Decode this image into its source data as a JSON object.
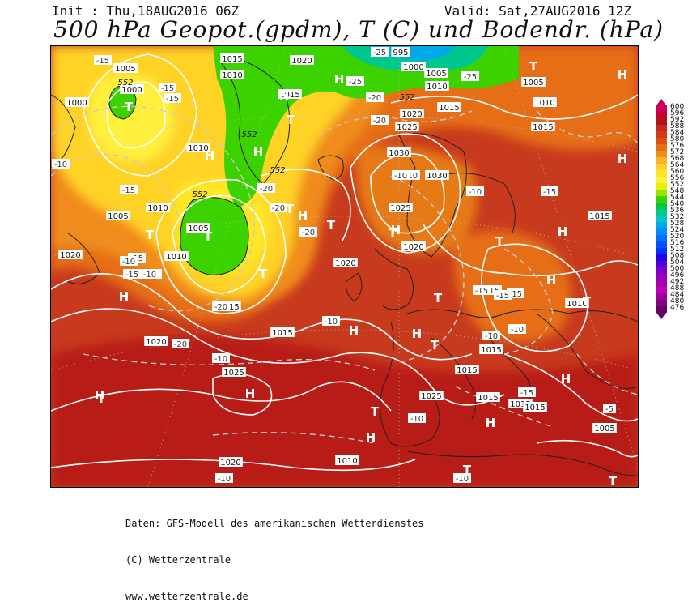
{
  "header": {
    "init": "Init : Thu,18AUG2016 06Z",
    "valid": "Valid: Sat,27AUG2016 12Z",
    "title": "500 hPa Geopot.(gpdm), T (C) und Bodendr. (hPa)"
  },
  "legend": {
    "labels": [
      "600",
      "596",
      "592",
      "588",
      "584",
      "580",
      "576",
      "572",
      "568",
      "564",
      "560",
      "556",
      "552",
      "548",
      "544",
      "540",
      "536",
      "532",
      "528",
      "524",
      "520",
      "516",
      "512",
      "508",
      "504",
      "500",
      "496",
      "492",
      "488",
      "484",
      "480",
      "476"
    ],
    "colors": [
      "#c8005a",
      "#c80032",
      "#b41414",
      "#c82828",
      "#d23c14",
      "#dc5014",
      "#e66e14",
      "#f08c1e",
      "#fab428",
      "#ffd228",
      "#ffe628",
      "#fff03c",
      "#e6f000",
      "#96e600",
      "#3cd200",
      "#00c83c",
      "#00c88c",
      "#00c8c8",
      "#00aae6",
      "#008cff",
      "#006eff",
      "#0050ff",
      "#0032ff",
      "#2800e6",
      "#5000d2",
      "#7800c8",
      "#9600be",
      "#aa00aa",
      "#be00be",
      "#a0009a",
      "#820082",
      "#640064"
    ]
  },
  "map": {
    "pressure_labels": [
      "1015",
      "1005",
      "1000",
      "1010",
      "1000",
      "1020",
      "1015",
      "1005",
      "995",
      "1000",
      "1005",
      "1010",
      "1015",
      "1010",
      "1025",
      "1020",
      "1015",
      "1030",
      "1030",
      "1010",
      "1005",
      "1010",
      "1005",
      "1015",
      "1020",
      "1025",
      "1025",
      "1020",
      "1020",
      "1010",
      "1015",
      "1020",
      "1015",
      "1025",
      "1015",
      "1015",
      "1010",
      "1015",
      "1020",
      "1015",
      "1010",
      "1015",
      "1005"
    ],
    "temp_labels": [
      "-15",
      "-15",
      "-15",
      "-10",
      "-15",
      "-15",
      "-10",
      "-10",
      "-20",
      "-20",
      "-25",
      "-25",
      "-25",
      "-20",
      "-20",
      "-20",
      "-15",
      "-10",
      "-10",
      "-10",
      "-10",
      "-15",
      "-20",
      "-15",
      "-10",
      "-10",
      "-10",
      "-15",
      "-15",
      "-10",
      "-5",
      "-10",
      "-20",
      "-15",
      "-10",
      "-15",
      "-10"
    ],
    "geopot_labels": [
      "552",
      "552",
      "552",
      "552",
      "552"
    ],
    "high_symbol": "H",
    "low_symbol": "T",
    "highs": [
      "H",
      "H",
      "H",
      "H",
      "H",
      "H",
      "H",
      "H",
      "H",
      "H",
      "H",
      "H",
      "H",
      "H",
      "H",
      "H",
      "H",
      "H"
    ],
    "lows": [
      "T",
      "T",
      "T",
      "T",
      "T",
      "T",
      "T",
      "T",
      "T",
      "T",
      "T",
      "T",
      "T",
      "T",
      "T",
      "T",
      "T"
    ]
  },
  "footer": {
    "line1": "Daten: GFS-Modell des amerikanischen Wetterdienstes",
    "line2": "(C) Wetterzentrale",
    "line3": "www.wetterzentrale.de"
  }
}
